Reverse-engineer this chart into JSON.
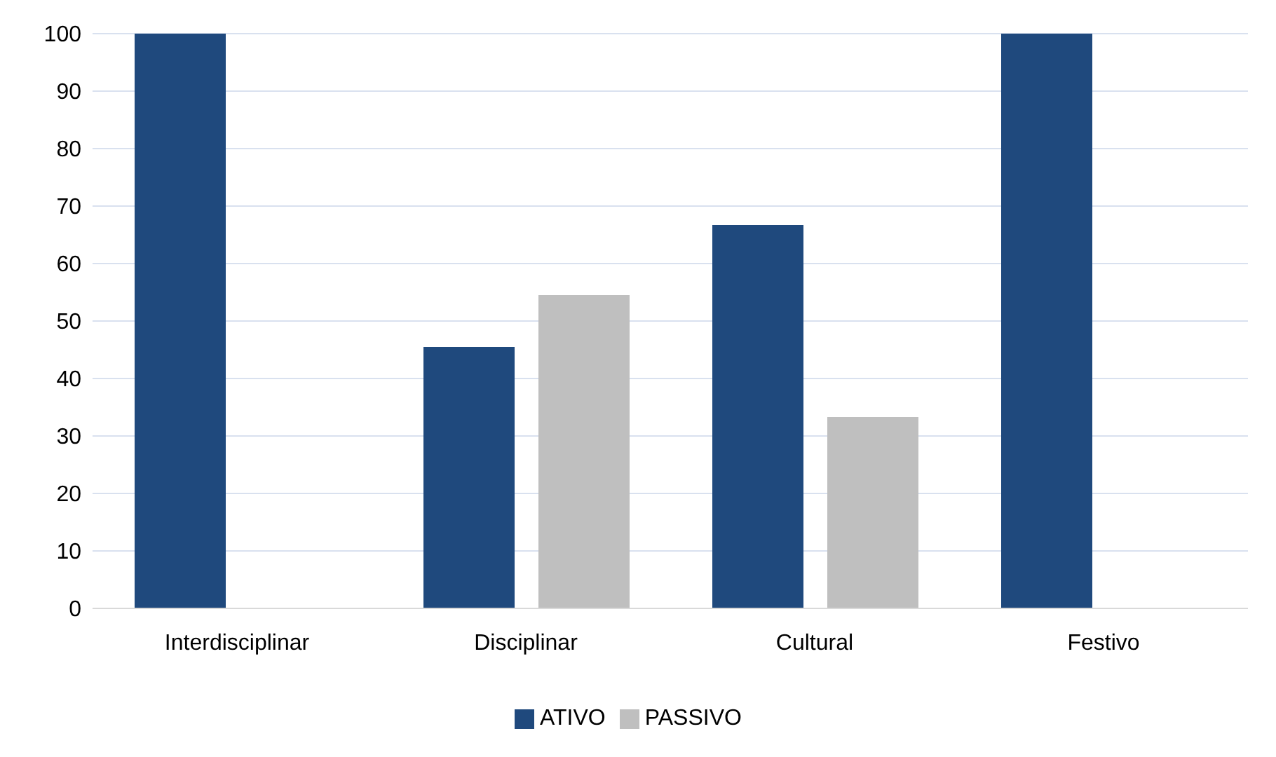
{
  "chart_data": {
    "type": "bar",
    "categories": [
      "Interdisciplinar",
      "Disciplinar",
      "Cultural",
      "Festivo"
    ],
    "series": [
      {
        "name": "ATIVO",
        "color": "#1f497d",
        "values": [
          100,
          45.5,
          66.7,
          100
        ]
      },
      {
        "name": "PASSIVO",
        "color": "#bfbfbf",
        "values": [
          0,
          54.5,
          33.3,
          0
        ]
      }
    ],
    "ylim": [
      0,
      100
    ],
    "yticks": [
      0,
      10,
      20,
      30,
      40,
      50,
      60,
      70,
      80,
      90,
      100
    ],
    "grid": "y",
    "legend": "bottom"
  }
}
